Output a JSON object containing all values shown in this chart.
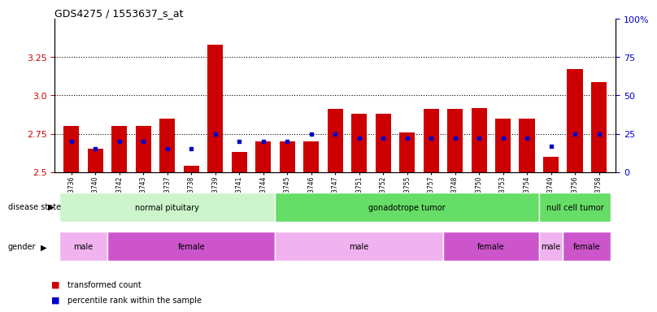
{
  "title": "GDS4275 / 1553637_s_at",
  "samples": [
    "GSM663736",
    "GSM663740",
    "GSM663742",
    "GSM663743",
    "GSM663737",
    "GSM663738",
    "GSM663739",
    "GSM663741",
    "GSM663744",
    "GSM663745",
    "GSM663746",
    "GSM663747",
    "GSM663751",
    "GSM663752",
    "GSM663755",
    "GSM663757",
    "GSM663748",
    "GSM663750",
    "GSM663753",
    "GSM663754",
    "GSM663749",
    "GSM663756",
    "GSM663758"
  ],
  "transformed_count": [
    2.8,
    2.65,
    2.8,
    2.8,
    2.85,
    2.54,
    3.33,
    2.63,
    2.7,
    2.7,
    2.7,
    2.91,
    2.88,
    2.88,
    2.76,
    2.91,
    2.91,
    2.92,
    2.85,
    2.85,
    2.6,
    3.17,
    3.09
  ],
  "percentile_rank": [
    20,
    15,
    20,
    20,
    15,
    15,
    25,
    20,
    20,
    20,
    25,
    25,
    22,
    22,
    22,
    22,
    22,
    22,
    22,
    22,
    17,
    25,
    25
  ],
  "ylim_left": [
    2.5,
    3.5
  ],
  "ylim_right": [
    0,
    100
  ],
  "yticks_left": [
    2.5,
    2.75,
    3.0,
    3.25
  ],
  "yticks_right": [
    0,
    25,
    50,
    75,
    100
  ],
  "ytick_labels_right": [
    "0",
    "25",
    "50",
    "75",
    "100%"
  ],
  "bar_color": "#cc0000",
  "dot_color": "#0000cc",
  "bar_bottom": 2.5,
  "disease_defs": [
    {
      "label": "normal pituitary",
      "start": 0,
      "end": 8,
      "color": "#ccf5cc"
    },
    {
      "label": "gonadotrope tumor",
      "start": 9,
      "end": 19,
      "color": "#66dd66"
    },
    {
      "label": "null cell tumor",
      "start": 20,
      "end": 22,
      "color": "#66dd66"
    }
  ],
  "gender_defs": [
    {
      "label": "male",
      "start": 0,
      "end": 1,
      "color": "#f0b3f0"
    },
    {
      "label": "female",
      "start": 2,
      "end": 8,
      "color": "#cc55cc"
    },
    {
      "label": "male",
      "start": 9,
      "end": 15,
      "color": "#f0b3f0"
    },
    {
      "label": "female",
      "start": 16,
      "end": 19,
      "color": "#cc55cc"
    },
    {
      "label": "male",
      "start": 20,
      "end": 20,
      "color": "#f0b3f0"
    },
    {
      "label": "female",
      "start": 21,
      "end": 22,
      "color": "#cc55cc"
    }
  ],
  "bg_color": "#ffffff",
  "tick_color_left": "#cc0000",
  "tick_color_right": "#0000cc",
  "dotted_lines": [
    2.75,
    3.0,
    3.25
  ]
}
